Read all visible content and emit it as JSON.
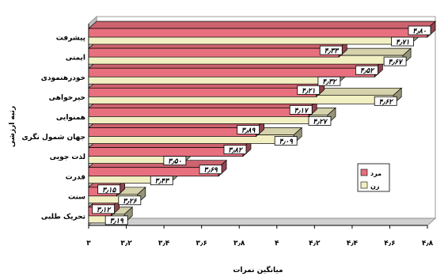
{
  "chart_data": {
    "type": "bar",
    "orientation": "horizontal",
    "three_d": true,
    "xlabel": "میانگین نمرات",
    "ylabel": "رتبه ارزشی",
    "xlim": [
      3,
      4.8
    ],
    "xticks": [
      3,
      3.2,
      3.4,
      3.6,
      3.8,
      4,
      4.2,
      4.4,
      4.6,
      4.8
    ],
    "xtick_labels": [
      "۳",
      "۳٫۲",
      "۳٫۴",
      "۳٫۶",
      "۳٫۸",
      "۴",
      "۴٫۲",
      "۴٫۴",
      "۴٫۶",
      "۴٫۸"
    ],
    "categories": [
      "پیشرفت",
      "ایمنی",
      "خودرهنمودی",
      "خیرخواهی",
      "همنوایی",
      "جهان شمول نگری",
      "لذت جویی",
      "قدرت",
      "سنت",
      "تحریک طلبی"
    ],
    "legend_position": "right",
    "series": [
      {
        "name": "مرد",
        "color": "#e8707e",
        "values": [
          4.8,
          4.33,
          4.52,
          4.21,
          4.17,
          3.89,
          3.82,
          3.69,
          3.15,
          3.12
        ],
        "labels": [
          "۴٫۸۰",
          "۴٫۳۳",
          "۴٫۵۲",
          "۴٫۲۱",
          "۴٫۱۷",
          "۳٫۸۹",
          "۳٫۸۲",
          "۳٫۶۹",
          "۳٫۱۵",
          "۳٫۱۲"
        ]
      },
      {
        "name": "زن",
        "color": "#f2efc3",
        "values": [
          4.71,
          4.67,
          4.32,
          4.62,
          4.27,
          4.09,
          3.5,
          3.43,
          3.26,
          3.19
        ],
        "labels": [
          "۴٫۷۱",
          "۴٫۶۷",
          "۴٫۳۲",
          "۴٫۶۲",
          "۴٫۲۷",
          "۴٫۰۹",
          "۳٫۵۰",
          "۳٫۴۳",
          "۳٫۲۶",
          "۳٫۱۹"
        ]
      }
    ]
  }
}
